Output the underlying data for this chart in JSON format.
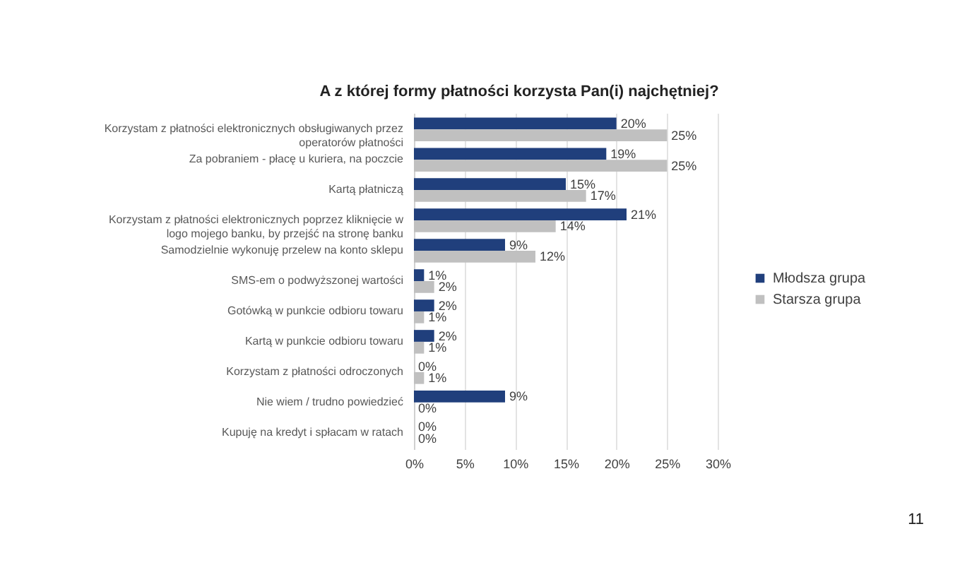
{
  "chart_data": {
    "type": "bar",
    "orientation": "horizontal",
    "title": "A z której formy płatności korzysta Pan(i) najchętniej?",
    "categories": [
      "Korzystam z płatności elektronicznych obsługiwanych przez operatorów płatności",
      "Za pobraniem - płacę u kuriera, na poczcie",
      "Kartą płatniczą",
      "Korzystam z płatności elektronicznych poprzez kliknięcie w logo mojego banku, by przejść na stronę banku",
      "Samodzielnie wykonuję przelew na konto sklepu",
      "SMS-em o podwyższonej wartości",
      "Gotówką w punkcie odbioru towaru",
      "Kartą w punkcie odbioru towaru",
      "Korzystam z płatności odroczonych",
      "Nie wiem / trudno powiedzieć",
      "Kupuję na kredyt i spłacam w ratach"
    ],
    "series": [
      {
        "name": "Młodsza grupa",
        "color": "#203f7c",
        "values": [
          20,
          19,
          15,
          21,
          9,
          1,
          2,
          2,
          0,
          9,
          0
        ],
        "value_labels": [
          "20%",
          "19%",
          "15%",
          "21%",
          "9%",
          "1%",
          "2%",
          "2%",
          "0%",
          "9%",
          "0%"
        ]
      },
      {
        "name": "Starsza grupa",
        "color": "#c0c0c0",
        "values": [
          25,
          25,
          17,
          14,
          12,
          2,
          1,
          1,
          1,
          0,
          0
        ],
        "value_labels": [
          "25%",
          "25%",
          "17%",
          "14%",
          "12%",
          "2%",
          "1%",
          "1%",
          "1%",
          "0%",
          "0%"
        ]
      }
    ],
    "xlim": [
      0,
      30
    ],
    "xticks": [
      {
        "value": 0,
        "label": "0%"
      },
      {
        "value": 5,
        "label": "5%"
      },
      {
        "value": 10,
        "label": "10%"
      },
      {
        "value": 15,
        "label": "15%"
      },
      {
        "value": 20,
        "label": "20%"
      },
      {
        "value": 25,
        "label": "25%"
      },
      {
        "value": 30,
        "label": "30%"
      }
    ],
    "grid": "x",
    "legend": "right",
    "annotations": [
      "11"
    ]
  }
}
